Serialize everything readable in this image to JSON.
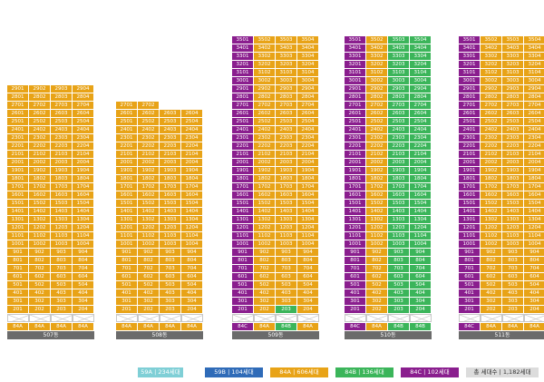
{
  "colors": {
    "84A": "#e8a317",
    "84B": "#3bb55a",
    "84C": "#8a1e8e",
    "59A": "#7fcfd6",
    "59B": "#2f6bb8",
    "total_bg": "#dcdcdc",
    "total_text": "#333333"
  },
  "buildings": [
    {
      "name": "507동",
      "top_floor": 29,
      "base_types": [
        "84A",
        "84A",
        "84A",
        "84A"
      ],
      "upper_types": [
        "84A",
        "84A",
        "84A",
        "84A"
      ]
    },
    {
      "name": "508동",
      "top_floor": 27,
      "base_types": [
        "84A",
        "84A",
        "84A",
        "84A"
      ],
      "upper_types": [
        "84A",
        "84A",
        "84A",
        "84A"
      ],
      "top_floor_units": 2
    },
    {
      "name": "509동",
      "top_floor": 35,
      "base_types": [
        "84C",
        "84A",
        "84B",
        "84A"
      ],
      "upper_types": [
        "84C",
        "84A",
        "84A",
        "84A"
      ]
    },
    {
      "name": "510동",
      "top_floor": 35,
      "base_types": [
        "84C",
        "84A",
        "84B",
        "84B"
      ],
      "upper_types": [
        "84C",
        "84A",
        "84B",
        "84B"
      ]
    },
    {
      "name": "511동",
      "top_floor": 35,
      "base_types": [
        "84C",
        "84A",
        "84A",
        "84A"
      ],
      "upper_types": [
        "84C",
        "84A",
        "84A",
        "84A"
      ]
    }
  ],
  "legend": [
    {
      "key": "59A",
      "label": "59A  |  234세대"
    },
    {
      "key": "59B",
      "label": "59B  |  104세대"
    },
    {
      "key": "84A",
      "label": "84A  |  606세대"
    },
    {
      "key": "84B",
      "label": "84B  |  136세대"
    },
    {
      "key": "84C",
      "label": "84C  |  102세대"
    },
    {
      "key": "total",
      "label": "총 세대수  |  1,182세대"
    }
  ]
}
